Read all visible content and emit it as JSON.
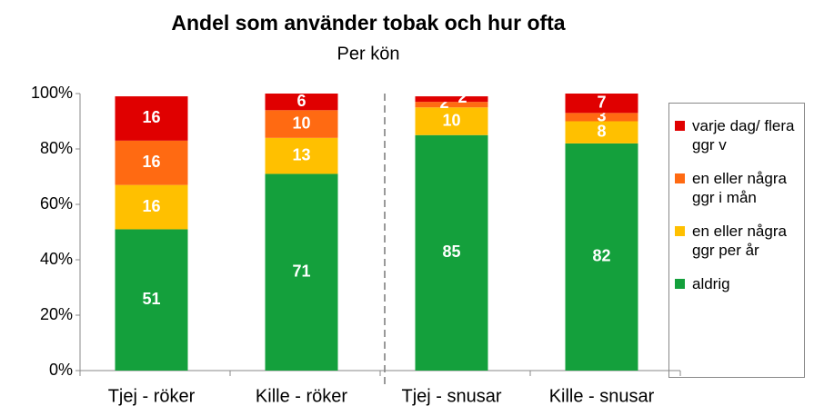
{
  "chart_data": {
    "type": "stacked_bar",
    "title": "Andel som använder tobak och hur ofta",
    "subtitle": "Per kön",
    "categories": [
      "Tjej - röker",
      "Kille - röker",
      "Tjej - snusar",
      "Kille - snusar"
    ],
    "series": [
      {
        "name": "aldrig",
        "color": "#14a03c",
        "values": [
          51,
          71,
          85,
          82
        ]
      },
      {
        "name": "en eller några ggr per år",
        "color": "#ffc000",
        "values": [
          16,
          13,
          10,
          8
        ]
      },
      {
        "name": "en eller några ggr i mån",
        "color": "#ff6a12",
        "values": [
          16,
          10,
          2,
          3
        ]
      },
      {
        "name": "varje dag/ flera ggr v",
        "color": "#e00000",
        "values": [
          16,
          6,
          2,
          7
        ]
      }
    ],
    "ylim": [
      0,
      100
    ],
    "yticks": [
      {
        "value": 0,
        "label": "0%"
      },
      {
        "value": 20,
        "label": "20%"
      },
      {
        "value": 40,
        "label": "40%"
      },
      {
        "value": 60,
        "label": "60%"
      },
      {
        "value": 80,
        "label": "80%"
      },
      {
        "value": 100,
        "label": "100%"
      }
    ],
    "legend": "right"
  }
}
